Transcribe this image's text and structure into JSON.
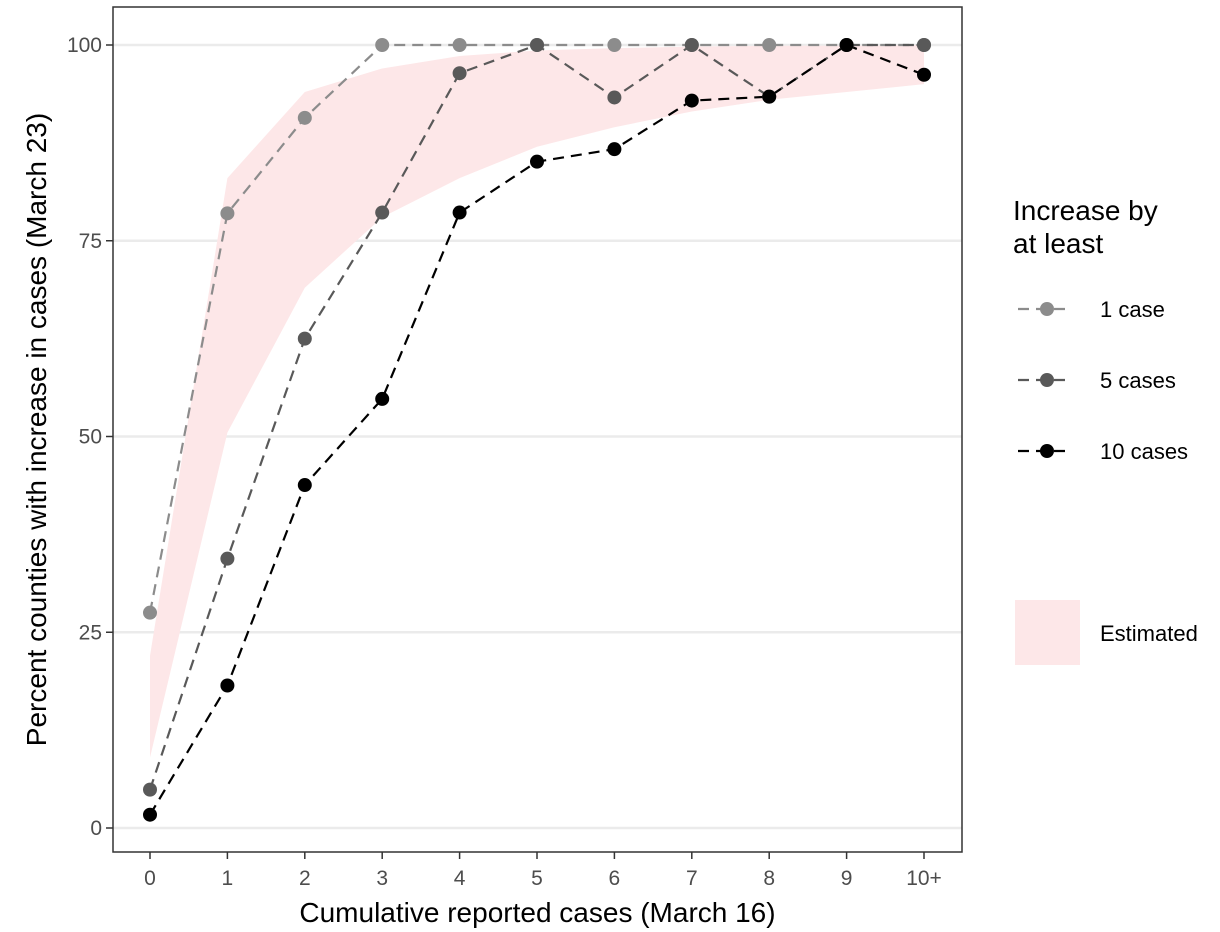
{
  "chart_data": {
    "type": "line",
    "xlabel": "Cumulative reported cases (March 16)",
    "ylabel": "Percent counties with increase in cases (March 23)",
    "categories": [
      "0",
      "1",
      "2",
      "3",
      "4",
      "5",
      "6",
      "7",
      "8",
      "9",
      "10+"
    ],
    "ylim": [
      0,
      100
    ],
    "yticks": [
      "0",
      "25",
      "50",
      "75",
      "100"
    ],
    "ytick_values": [
      0,
      25,
      50,
      75,
      100
    ],
    "grid": "horizontal",
    "legend": {
      "title_lines": [
        "Increase by",
        "at least"
      ],
      "placement": "right"
    },
    "series": [
      {
        "name": "1 case",
        "color": "#8c8c8c",
        "values": [
          27.5,
          78.5,
          90.7,
          100,
          100,
          100,
          100,
          100,
          100,
          100,
          100
        ]
      },
      {
        "name": "5 cases",
        "color": "#595959",
        "values": [
          4.9,
          34.4,
          62.5,
          78.6,
          96.4,
          100,
          93.3,
          100,
          93.4,
          100,
          100
        ]
      },
      {
        "name": "10 cases",
        "color": "#000000",
        "values": [
          1.7,
          18.2,
          43.8,
          54.8,
          78.6,
          85.1,
          86.7,
          92.9,
          93.4,
          100,
          96.2
        ]
      }
    ],
    "band": {
      "name": "Estimated",
      "color": "#fde7e8",
      "lower": [
        9,
        50.5,
        69,
        78,
        83,
        87,
        89.5,
        91.5,
        93,
        94,
        95
      ],
      "upper": [
        22,
        83,
        94,
        97,
        98.6,
        99.3,
        99.6,
        99.8,
        99.9,
        99.9,
        100
      ]
    }
  }
}
